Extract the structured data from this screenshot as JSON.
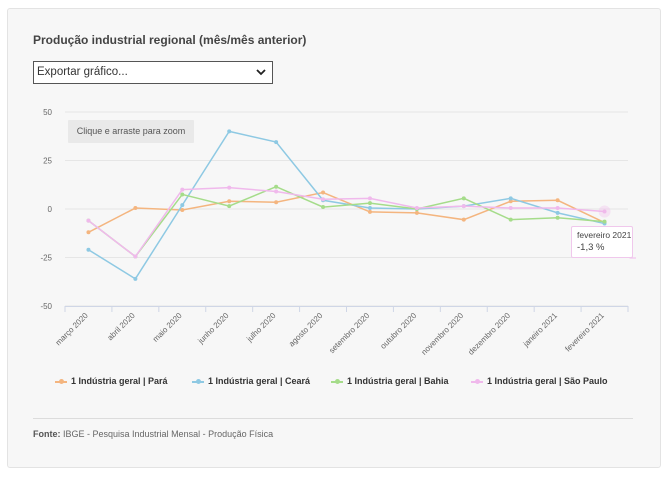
{
  "title": "Produção industrial regional (mês/mês anterior)",
  "export_select": {
    "value": "Exportar gráfico..."
  },
  "zoom_hint": "Clique e arraste para zoom",
  "tooltip": {
    "label": "fevereiro 2021",
    "value": "-1,3 %"
  },
  "source": {
    "label": "Fonte:",
    "text": "IBGE - Pesquisa Industrial Mensal - Produção Física"
  },
  "chart_data": {
    "type": "line",
    "categories": [
      "março 2020",
      "abril 2020",
      "maio 2020",
      "junho 2020",
      "julho 2020",
      "agosto 2020",
      "setembro 2020",
      "outubro 2020",
      "novembro 2020",
      "dezembro 2020",
      "janeiro 2021",
      "fevereiro 2021"
    ],
    "ylim": [
      -50,
      50
    ],
    "yticks": [
      50,
      25,
      0,
      -25,
      -50
    ],
    "ytick_labels": [
      "50",
      "25",
      "0",
      "-25",
      "-50"
    ],
    "grid": true,
    "legend_position": "bottom",
    "series": [
      {
        "name": "1 Indústria geral | Pará",
        "color": "#f4b57f",
        "values": [
          -12,
          0.5,
          -0.5,
          4,
          3.5,
          8.5,
          -1.5,
          -2,
          -5.5,
          4,
          4.5,
          -7
        ]
      },
      {
        "name": "1 Indústria geral | Ceará",
        "color": "#8ec9e3",
        "values": [
          -21,
          -36,
          2,
          40,
          34.5,
          4.5,
          0.5,
          0,
          1.5,
          5.5,
          -2,
          -7.5
        ]
      },
      {
        "name": "1 Indústria geral | Bahia",
        "color": "#a5dc8a",
        "values": [
          -6,
          -24.5,
          7.5,
          1.5,
          11.5,
          1,
          3,
          0,
          5.5,
          -5.5,
          -4.5,
          -6.5
        ]
      },
      {
        "name": "1 Indústria geral | São Paulo",
        "color": "#f0b9ec",
        "values": [
          -6,
          -24.5,
          10,
          11,
          9,
          5,
          5.5,
          0.5,
          1.5,
          0.5,
          0.5,
          -1.3
        ]
      }
    ]
  }
}
